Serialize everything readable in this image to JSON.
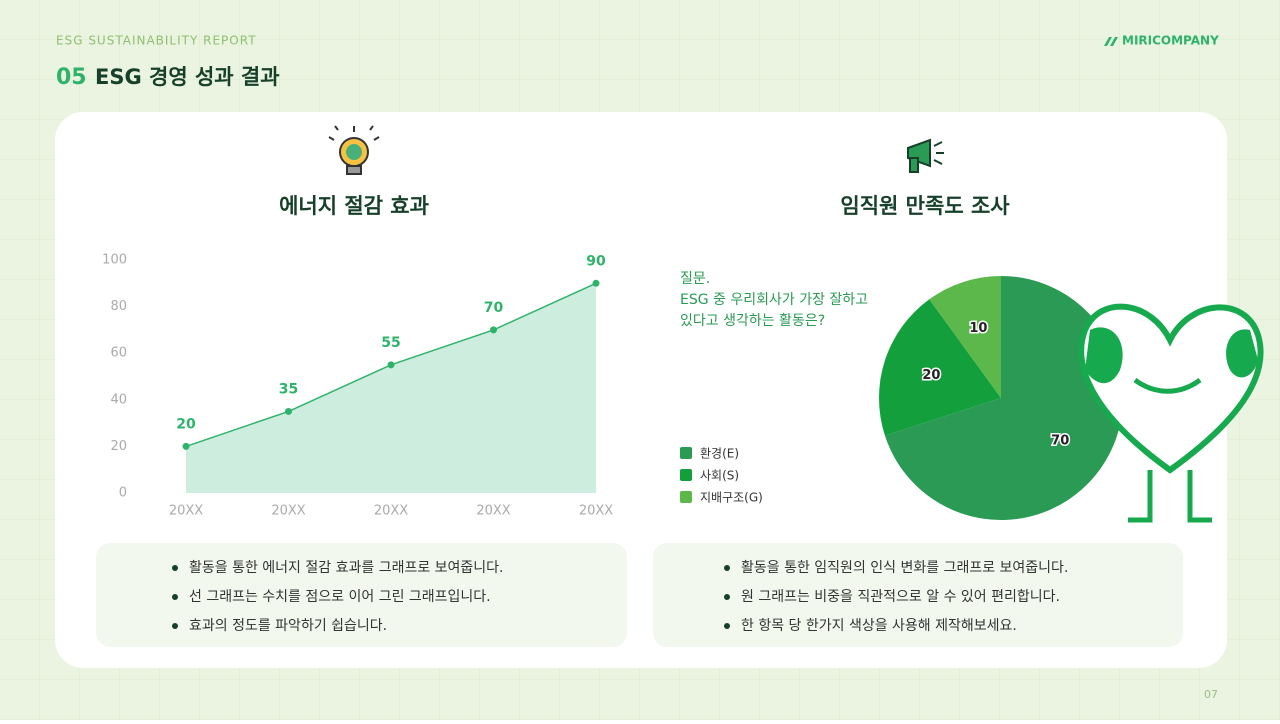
{
  "header": {
    "report": "ESG SUSTAINABILITY REPORT",
    "number": "05",
    "title": "ESG 경영 성과 결과",
    "brand": "MIRICOMPANY"
  },
  "chart_data": [
    {
      "type": "area",
      "title": "에너지 절감 효과",
      "categories": [
        "20XX",
        "20XX",
        "20XX",
        "20XX",
        "20XX"
      ],
      "values": [
        20,
        35,
        55,
        70,
        90
      ],
      "color": "#2fb36b",
      "ylim": [
        0,
        100
      ],
      "yticks": [
        0,
        20,
        40,
        60,
        80,
        100
      ]
    },
    {
      "type": "pie",
      "title": "임직원 만족도 조사",
      "question": [
        "질문.",
        "ESG 중 우리회사가 가장 잘하고",
        "있다고 생각하는 활동은?"
      ],
      "categories": [
        "환경(E)",
        "사회(S)",
        "지배구조(G)"
      ],
      "values": [
        70,
        20,
        10
      ],
      "colors": [
        "#2a9a55",
        "#13a03c",
        "#5cb84a"
      ]
    }
  ],
  "notes": [
    [
      "활동을 통한 에너지 절감 효과를 그래프로 보여줍니다.",
      "선 그래프는 수치를 점으로 이어 그린 그래프입니다.",
      "효과의 정도를 파악하기 쉽습니다."
    ],
    [
      "활동을 통한 임직원의 인식 변화를 그래프로 보여줍니다.",
      "원 그래프는 비중을 직관적으로 알 수 있어 편리합니다.",
      "한 항목 당 한가지 색상을 사용해 제작해보세요."
    ]
  ],
  "page": "07"
}
